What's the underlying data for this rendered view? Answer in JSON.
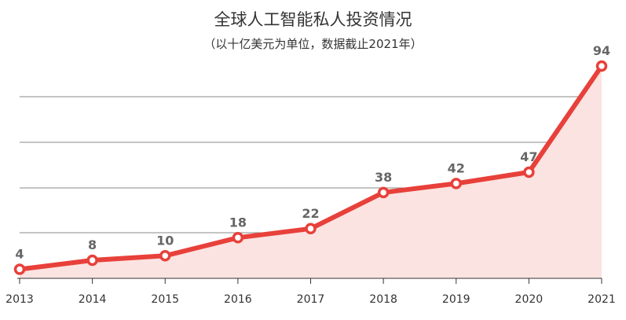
{
  "chart_data": {
    "type": "area",
    "title": "全球人工智能私人投资情况",
    "subtitle": "（以十亿美元为单位，数据截止2021年）",
    "categories": [
      "2013",
      "2014",
      "2015",
      "2016",
      "2017",
      "2018",
      "2019",
      "2020",
      "2021"
    ],
    "values": [
      4,
      8,
      10,
      18,
      22,
      38,
      42,
      47,
      94
    ],
    "ylim": [
      0,
      94
    ],
    "grid": true,
    "legend": "none",
    "colors": {
      "line": "#e8403a",
      "fill": "#fbe3e1",
      "grid": "#8a8a8a"
    }
  }
}
